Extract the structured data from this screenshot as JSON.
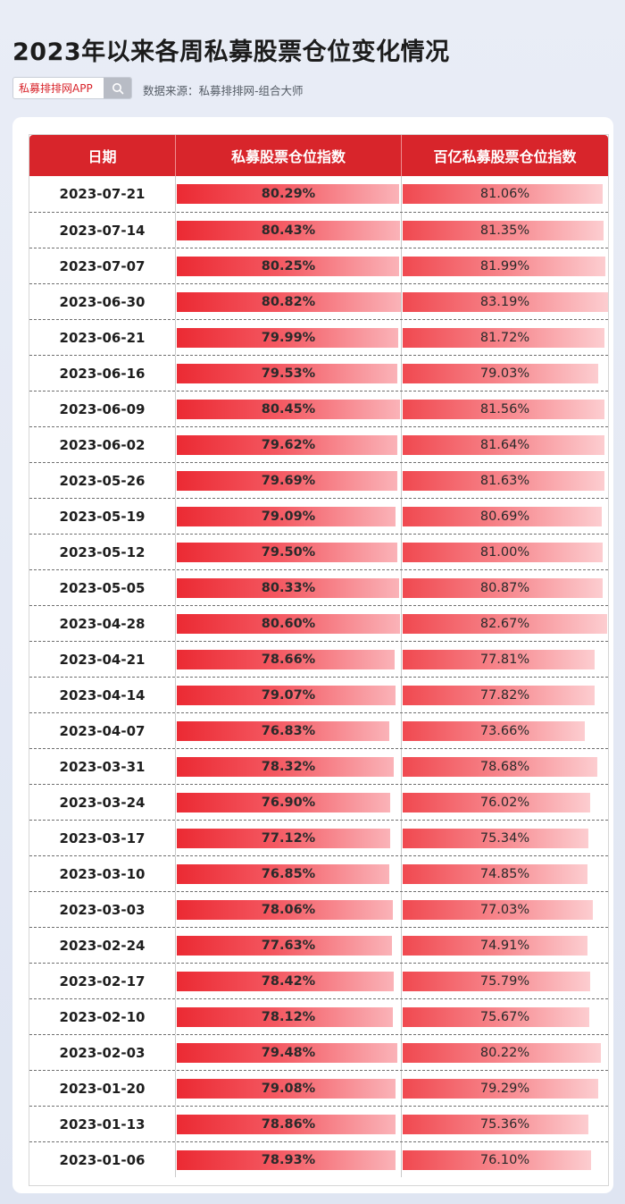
{
  "title": "2023年以来各周私募股票仓位变化情况",
  "search": {
    "text": "私募排排网APP",
    "icon": "search-icon"
  },
  "source": "数据来源：私募排排网-组合大师",
  "colors": {
    "header": "#d8252b",
    "bar": "#eb2a33",
    "brand": "#d8232a"
  },
  "chart_data": {
    "type": "table",
    "columns": [
      "日期",
      "私募股票仓位指数",
      "百亿私募股票仓位指数"
    ],
    "rows": [
      {
        "date": "2023-07-21",
        "v1": 80.29,
        "v2": 81.06,
        "v1_label": "80.29%",
        "v2_label": "81.06%"
      },
      {
        "date": "2023-07-14",
        "v1": 80.43,
        "v2": 81.35,
        "v1_label": "80.43%",
        "v2_label": "81.35%"
      },
      {
        "date": "2023-07-07",
        "v1": 80.25,
        "v2": 81.99,
        "v1_label": "80.25%",
        "v2_label": "81.99%"
      },
      {
        "date": "2023-06-30",
        "v1": 80.82,
        "v2": 83.19,
        "v1_label": "80.82%",
        "v2_label": "83.19%"
      },
      {
        "date": "2023-06-21",
        "v1": 79.99,
        "v2": 81.72,
        "v1_label": "79.99%",
        "v2_label": "81.72%"
      },
      {
        "date": "2023-06-16",
        "v1": 79.53,
        "v2": 79.03,
        "v1_label": "79.53%",
        "v2_label": "79.03%"
      },
      {
        "date": "2023-06-09",
        "v1": 80.45,
        "v2": 81.56,
        "v1_label": "80.45%",
        "v2_label": "81.56%"
      },
      {
        "date": "2023-06-02",
        "v1": 79.62,
        "v2": 81.64,
        "v1_label": "79.62%",
        "v2_label": "81.64%"
      },
      {
        "date": "2023-05-26",
        "v1": 79.69,
        "v2": 81.63,
        "v1_label": "79.69%",
        "v2_label": "81.63%"
      },
      {
        "date": "2023-05-19",
        "v1": 79.09,
        "v2": 80.69,
        "v1_label": "79.09%",
        "v2_label": "80.69%"
      },
      {
        "date": "2023-05-12",
        "v1": 79.5,
        "v2": 81.0,
        "v1_label": "79.50%",
        "v2_label": "81.00%"
      },
      {
        "date": "2023-05-05",
        "v1": 80.33,
        "v2": 80.87,
        "v1_label": "80.33%",
        "v2_label": "80.87%"
      },
      {
        "date": "2023-04-28",
        "v1": 80.6,
        "v2": 82.67,
        "v1_label": "80.60%",
        "v2_label": "82.67%"
      },
      {
        "date": "2023-04-21",
        "v1": 78.66,
        "v2": 77.81,
        "v1_label": "78.66%",
        "v2_label": "77.81%"
      },
      {
        "date": "2023-04-14",
        "v1": 79.07,
        "v2": 77.82,
        "v1_label": "79.07%",
        "v2_label": "77.82%"
      },
      {
        "date": "2023-04-07",
        "v1": 76.83,
        "v2": 73.66,
        "v1_label": "76.83%",
        "v2_label": "73.66%"
      },
      {
        "date": "2023-03-31",
        "v1": 78.32,
        "v2": 78.68,
        "v1_label": "78.32%",
        "v2_label": "78.68%"
      },
      {
        "date": "2023-03-24",
        "v1": 76.9,
        "v2": 76.02,
        "v1_label": "76.90%",
        "v2_label": "76.02%"
      },
      {
        "date": "2023-03-17",
        "v1": 77.12,
        "v2": 75.34,
        "v1_label": "77.12%",
        "v2_label": "75.34%"
      },
      {
        "date": "2023-03-10",
        "v1": 76.85,
        "v2": 74.85,
        "v1_label": "76.85%",
        "v2_label": "74.85%"
      },
      {
        "date": "2023-03-03",
        "v1": 78.06,
        "v2": 77.03,
        "v1_label": "78.06%",
        "v2_label": "77.03%"
      },
      {
        "date": "2023-02-24",
        "v1": 77.63,
        "v2": 74.91,
        "v1_label": "77.63%",
        "v2_label": "74.91%"
      },
      {
        "date": "2023-02-17",
        "v1": 78.42,
        "v2": 75.79,
        "v1_label": "78.42%",
        "v2_label": "75.79%"
      },
      {
        "date": "2023-02-10",
        "v1": 78.12,
        "v2": 75.67,
        "v1_label": "78.12%",
        "v2_label": "75.67%"
      },
      {
        "date": "2023-02-03",
        "v1": 79.48,
        "v2": 80.22,
        "v1_label": "79.48%",
        "v2_label": "80.22%"
      },
      {
        "date": "2023-01-20",
        "v1": 79.08,
        "v2": 79.29,
        "v1_label": "79.08%",
        "v2_label": "79.29%"
      },
      {
        "date": "2023-01-13",
        "v1": 78.86,
        "v2": 75.36,
        "v1_label": "78.86%",
        "v2_label": "75.36%"
      },
      {
        "date": "2023-01-06",
        "v1": 78.93,
        "v2": 76.1,
        "v1_label": "78.93%",
        "v2_label": "76.10%"
      }
    ]
  }
}
